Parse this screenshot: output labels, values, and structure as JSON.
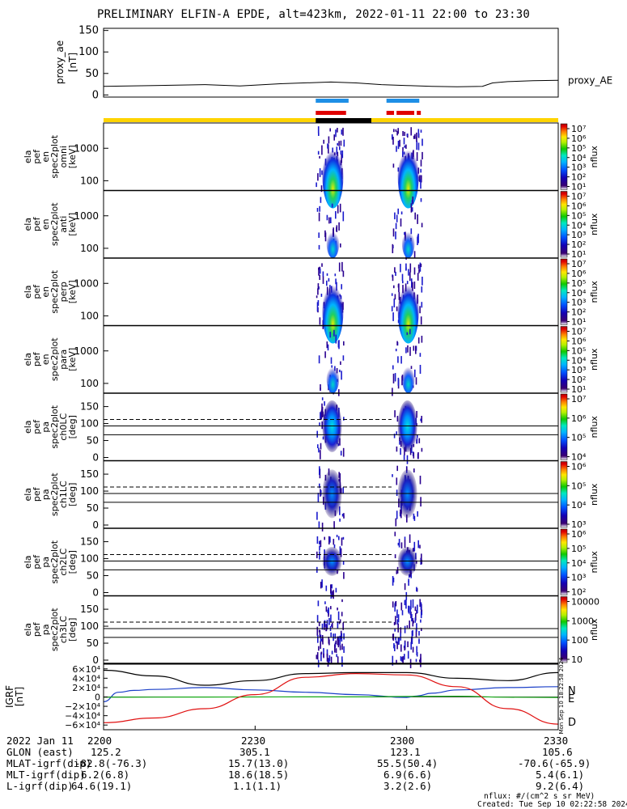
{
  "title": "PRELIMINARY ELFIN-A EPDE, alt=423km, 2022-01-11 22:00 to 23:30",
  "proxy_ae": {
    "ylabel": [
      "proxy_ae",
      "[nT]"
    ],
    "yticks": [
      "150",
      "100",
      "50",
      "0"
    ],
    "trace_label": "proxy_AE"
  },
  "energy_panels": [
    {
      "name": "omni",
      "ylabel": [
        "ela",
        "pef",
        "en",
        "spec2plot",
        "omni",
        "[keV]"
      ],
      "ticks": [
        "1000",
        "100"
      ]
    },
    {
      "name": "anti",
      "ylabel": [
        "ela",
        "pef",
        "en",
        "spec2plot",
        "anti",
        "[keV]"
      ],
      "ticks": [
        "1000",
        "100"
      ]
    },
    {
      "name": "perp",
      "ylabel": [
        "ela",
        "pef",
        "en",
        "spec2plot",
        "perp",
        "[keV]"
      ],
      "ticks": [
        "1000",
        "100"
      ]
    },
    {
      "name": "para",
      "ylabel": [
        "ela",
        "pef",
        "en",
        "spec2plot",
        "para",
        "[keV]"
      ],
      "ticks": [
        "1000",
        "100"
      ]
    }
  ],
  "pa_panels": [
    {
      "name": "ch0LC",
      "ylabel": [
        "ela",
        "pef",
        "pa",
        "spec2plot",
        "ch0LC",
        "[deg]"
      ],
      "ticks": [
        "150",
        "100",
        "50",
        "0"
      ]
    },
    {
      "name": "ch1LC",
      "ylabel": [
        "ela",
        "pef",
        "pa",
        "spec2plot",
        "ch1LC",
        "[deg]"
      ],
      "ticks": [
        "150",
        "100",
        "50",
        "0"
      ]
    },
    {
      "name": "ch2LC",
      "ylabel": [
        "ela",
        "pef",
        "pa",
        "spec2plot",
        "ch2LC",
        "[deg]"
      ],
      "ticks": [
        "150",
        "100",
        "50",
        "0"
      ]
    },
    {
      "name": "ch3LC",
      "ylabel": [
        "ela",
        "pef",
        "pa",
        "spec2plot",
        "ch3LC",
        "[deg]"
      ],
      "ticks": [
        "150",
        "100",
        "50",
        "0"
      ]
    }
  ],
  "colorbars": [
    {
      "labels": [
        "10⁷",
        "10⁶",
        "10⁵",
        "10⁴",
        "10³",
        "10²",
        "10¹"
      ],
      "unit": "nflux"
    },
    {
      "labels": [
        "10⁷",
        "10⁶",
        "10⁵",
        "10⁴",
        "10³",
        "10²",
        "10¹"
      ],
      "unit": "nflux"
    },
    {
      "labels": [
        "10⁷",
        "10⁶",
        "10⁵",
        "10⁴",
        "10³",
        "10²",
        "10¹"
      ],
      "unit": "nflux"
    },
    {
      "labels": [
        "10⁷",
        "10⁶",
        "10⁵",
        "10⁴",
        "10³",
        "10²",
        "10¹"
      ],
      "unit": "nflux"
    },
    {
      "labels": [
        "10⁷",
        "10⁶",
        "10⁵",
        "10⁴"
      ],
      "unit": "nflux"
    },
    {
      "labels": [
        "10⁶",
        "10⁵",
        "10⁴",
        "10³"
      ],
      "unit": "nflux"
    },
    {
      "labels": [
        "10⁶",
        "10⁵",
        "10⁴",
        "10³",
        "10²"
      ],
      "unit": "nflux"
    },
    {
      "labels": [
        "10000",
        "1000",
        "100",
        "10"
      ],
      "unit": "nflux"
    }
  ],
  "bfield": {
    "ylabel": [
      "IGRF",
      "[nT]"
    ],
    "yticks": [
      "6×10⁴",
      "4×10⁴",
      "2×10⁴",
      "0",
      "−2×10⁴",
      "−4×10⁴",
      "−6×10⁴"
    ],
    "components": [
      "N",
      "E",
      "D"
    ],
    "vertical_stamp": "Mon Sep 10 18:22:58 2024"
  },
  "footer": {
    "date": "2022 Jan 11",
    "time_ticks": [
      "2200",
      "2230",
      "2300",
      "2330"
    ],
    "rows": [
      {
        "label": "GLON (east)",
        "values": [
          "125.2",
          "305.1",
          "123.1",
          "105.6"
        ]
      },
      {
        "label": "MLAT-igrf(dip)",
        "values": [
          "-82.8(-76.3)",
          "15.7(13.0)",
          "55.5(50.4)",
          "-70.6(-65.9)"
        ]
      },
      {
        "label": "MLT-igrf(dip)",
        "values": [
          "6.2(6.8)",
          "18.6(18.5)",
          "6.9(6.6)",
          "5.4(6.1)"
        ]
      },
      {
        "label": "L-igrf(dip)",
        "values": [
          "64.6(19.1)",
          "1.1(1.1)",
          "3.2(2.6)",
          "9.2(6.4)"
        ]
      }
    ],
    "unit_note": "nflux: #/(cm^2 s sr MeV)",
    "created": "Created: Tue Sep 10 02:22:58 2024"
  },
  "colors": {
    "yellow_bar": "#ffd400",
    "black_bar": "#000000",
    "blue_mark": "#1e8fe6",
    "red_mark": "#e00000",
    "N": "#1a3fc8",
    "E": "#14a814",
    "D": "#e01010",
    "total": "#000000"
  },
  "chart_data": {
    "type": "heatmap",
    "time_range": [
      "2200",
      "2330"
    ],
    "proxy_ae_trace": {
      "t_min": [
        0,
        10,
        20,
        27,
        35,
        45,
        50,
        55,
        60,
        65,
        70,
        75,
        77,
        80,
        85,
        90
      ],
      "values": [
        20,
        22,
        24,
        21,
        26,
        30,
        28,
        24,
        22,
        20,
        19,
        20,
        28,
        31,
        33,
        34
      ],
      "ylim": [
        -5,
        155
      ]
    },
    "spectrogram_intervals_min": [
      [
        42,
        47.5
      ],
      [
        57,
        63
      ]
    ],
    "blue_marks_min": [
      [
        42,
        48.5
      ],
      [
        56,
        62.5
      ]
    ],
    "red_marks_min": [
      [
        42,
        48
      ],
      [
        56,
        57.5
      ],
      [
        58,
        61.5
      ],
      [
        62,
        62.8
      ]
    ],
    "black_bar_min": [
      [
        42,
        53
      ]
    ],
    "energy_ylim_keV": [
      50,
      6000
    ],
    "pa_ylim_deg": [
      0,
      180
    ],
    "pa_reference_lines_deg": {
      "solid": [
        67,
        93
      ],
      "dashed": 112
    },
    "bfield_series": [
      {
        "name": "N",
        "t_min": [
          0,
          3,
          6,
          10,
          20,
          30,
          40,
          50,
          60,
          62,
          65,
          70,
          80,
          90
        ],
        "values": [
          -10000,
          10000,
          14000,
          16000,
          20000,
          15000,
          10000,
          5000,
          -1000,
          2000,
          8000,
          15000,
          20000,
          22000
        ]
      },
      {
        "name": "E",
        "t_min": [
          0,
          10,
          20,
          30,
          40,
          50,
          60,
          70,
          80,
          90
        ],
        "values": [
          -500,
          -400,
          -200,
          0,
          100,
          200,
          1000,
          1500,
          -500,
          -1000
        ]
      },
      {
        "name": "D",
        "t_min": [
          0,
          10,
          20,
          30,
          40,
          50,
          60,
          70,
          80,
          90
        ],
        "values": [
          -55000,
          -45000,
          -25000,
          5000,
          42000,
          50000,
          47000,
          22000,
          -25000,
          -58000
        ]
      },
      {
        "name": "total",
        "t_min": [
          0,
          10,
          20,
          30,
          40,
          50,
          60,
          70,
          80,
          90
        ],
        "values": [
          57000,
          45000,
          25000,
          35000,
          50000,
          52000,
          52000,
          40000,
          35000,
          52000
        ]
      }
    ],
    "bfield_ylim": [
      -70000,
      70000
    ]
  }
}
